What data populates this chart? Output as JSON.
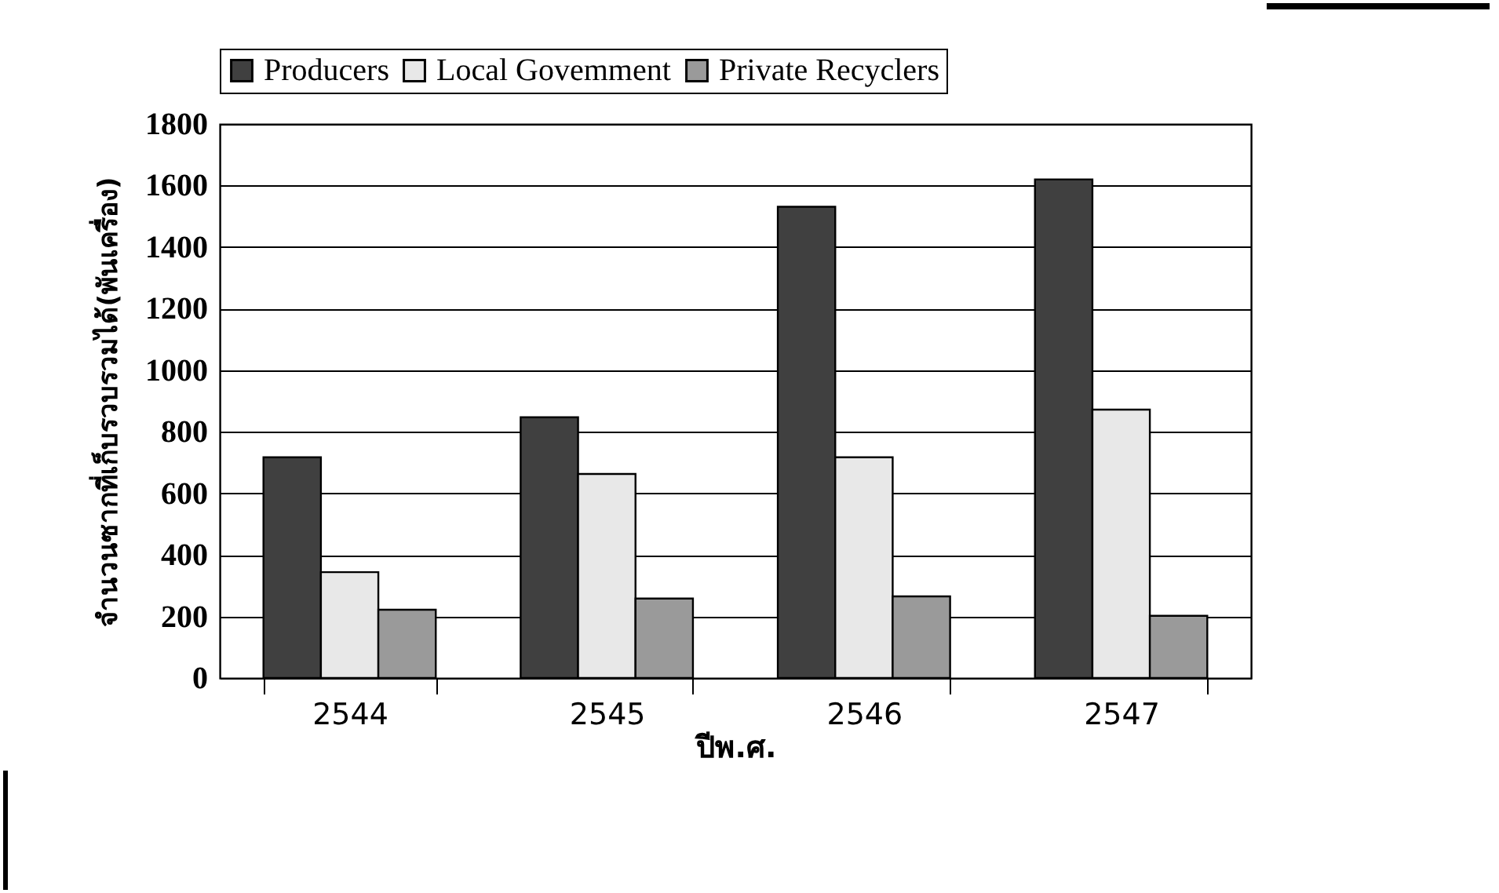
{
  "chart_data": {
    "type": "bar",
    "xlabel": "ปีพ.ศ.",
    "ylabel": "จำนวนซากที่เก็บรวบรวมได้(พันเครื่อง)",
    "categories": [
      "2544",
      "2545",
      "2546",
      "2547"
    ],
    "series": [
      {
        "name": "Producers",
        "color": "#404040",
        "values": [
          717,
          847,
          1531,
          1620
        ]
      },
      {
        "name": "Local Govemment",
        "color": "#e8e8e8",
        "values": [
          344,
          663,
          717,
          872
        ]
      },
      {
        "name": "Private Recyclers",
        "color": "#9a9a9a",
        "values": [
          222,
          258,
          265,
          202
        ]
      }
    ],
    "ylim": [
      0,
      1800
    ],
    "yticks": [
      0,
      200,
      400,
      600,
      800,
      1000,
      1200,
      1400,
      1600,
      1800
    ],
    "grid": "y",
    "legend": "top"
  }
}
